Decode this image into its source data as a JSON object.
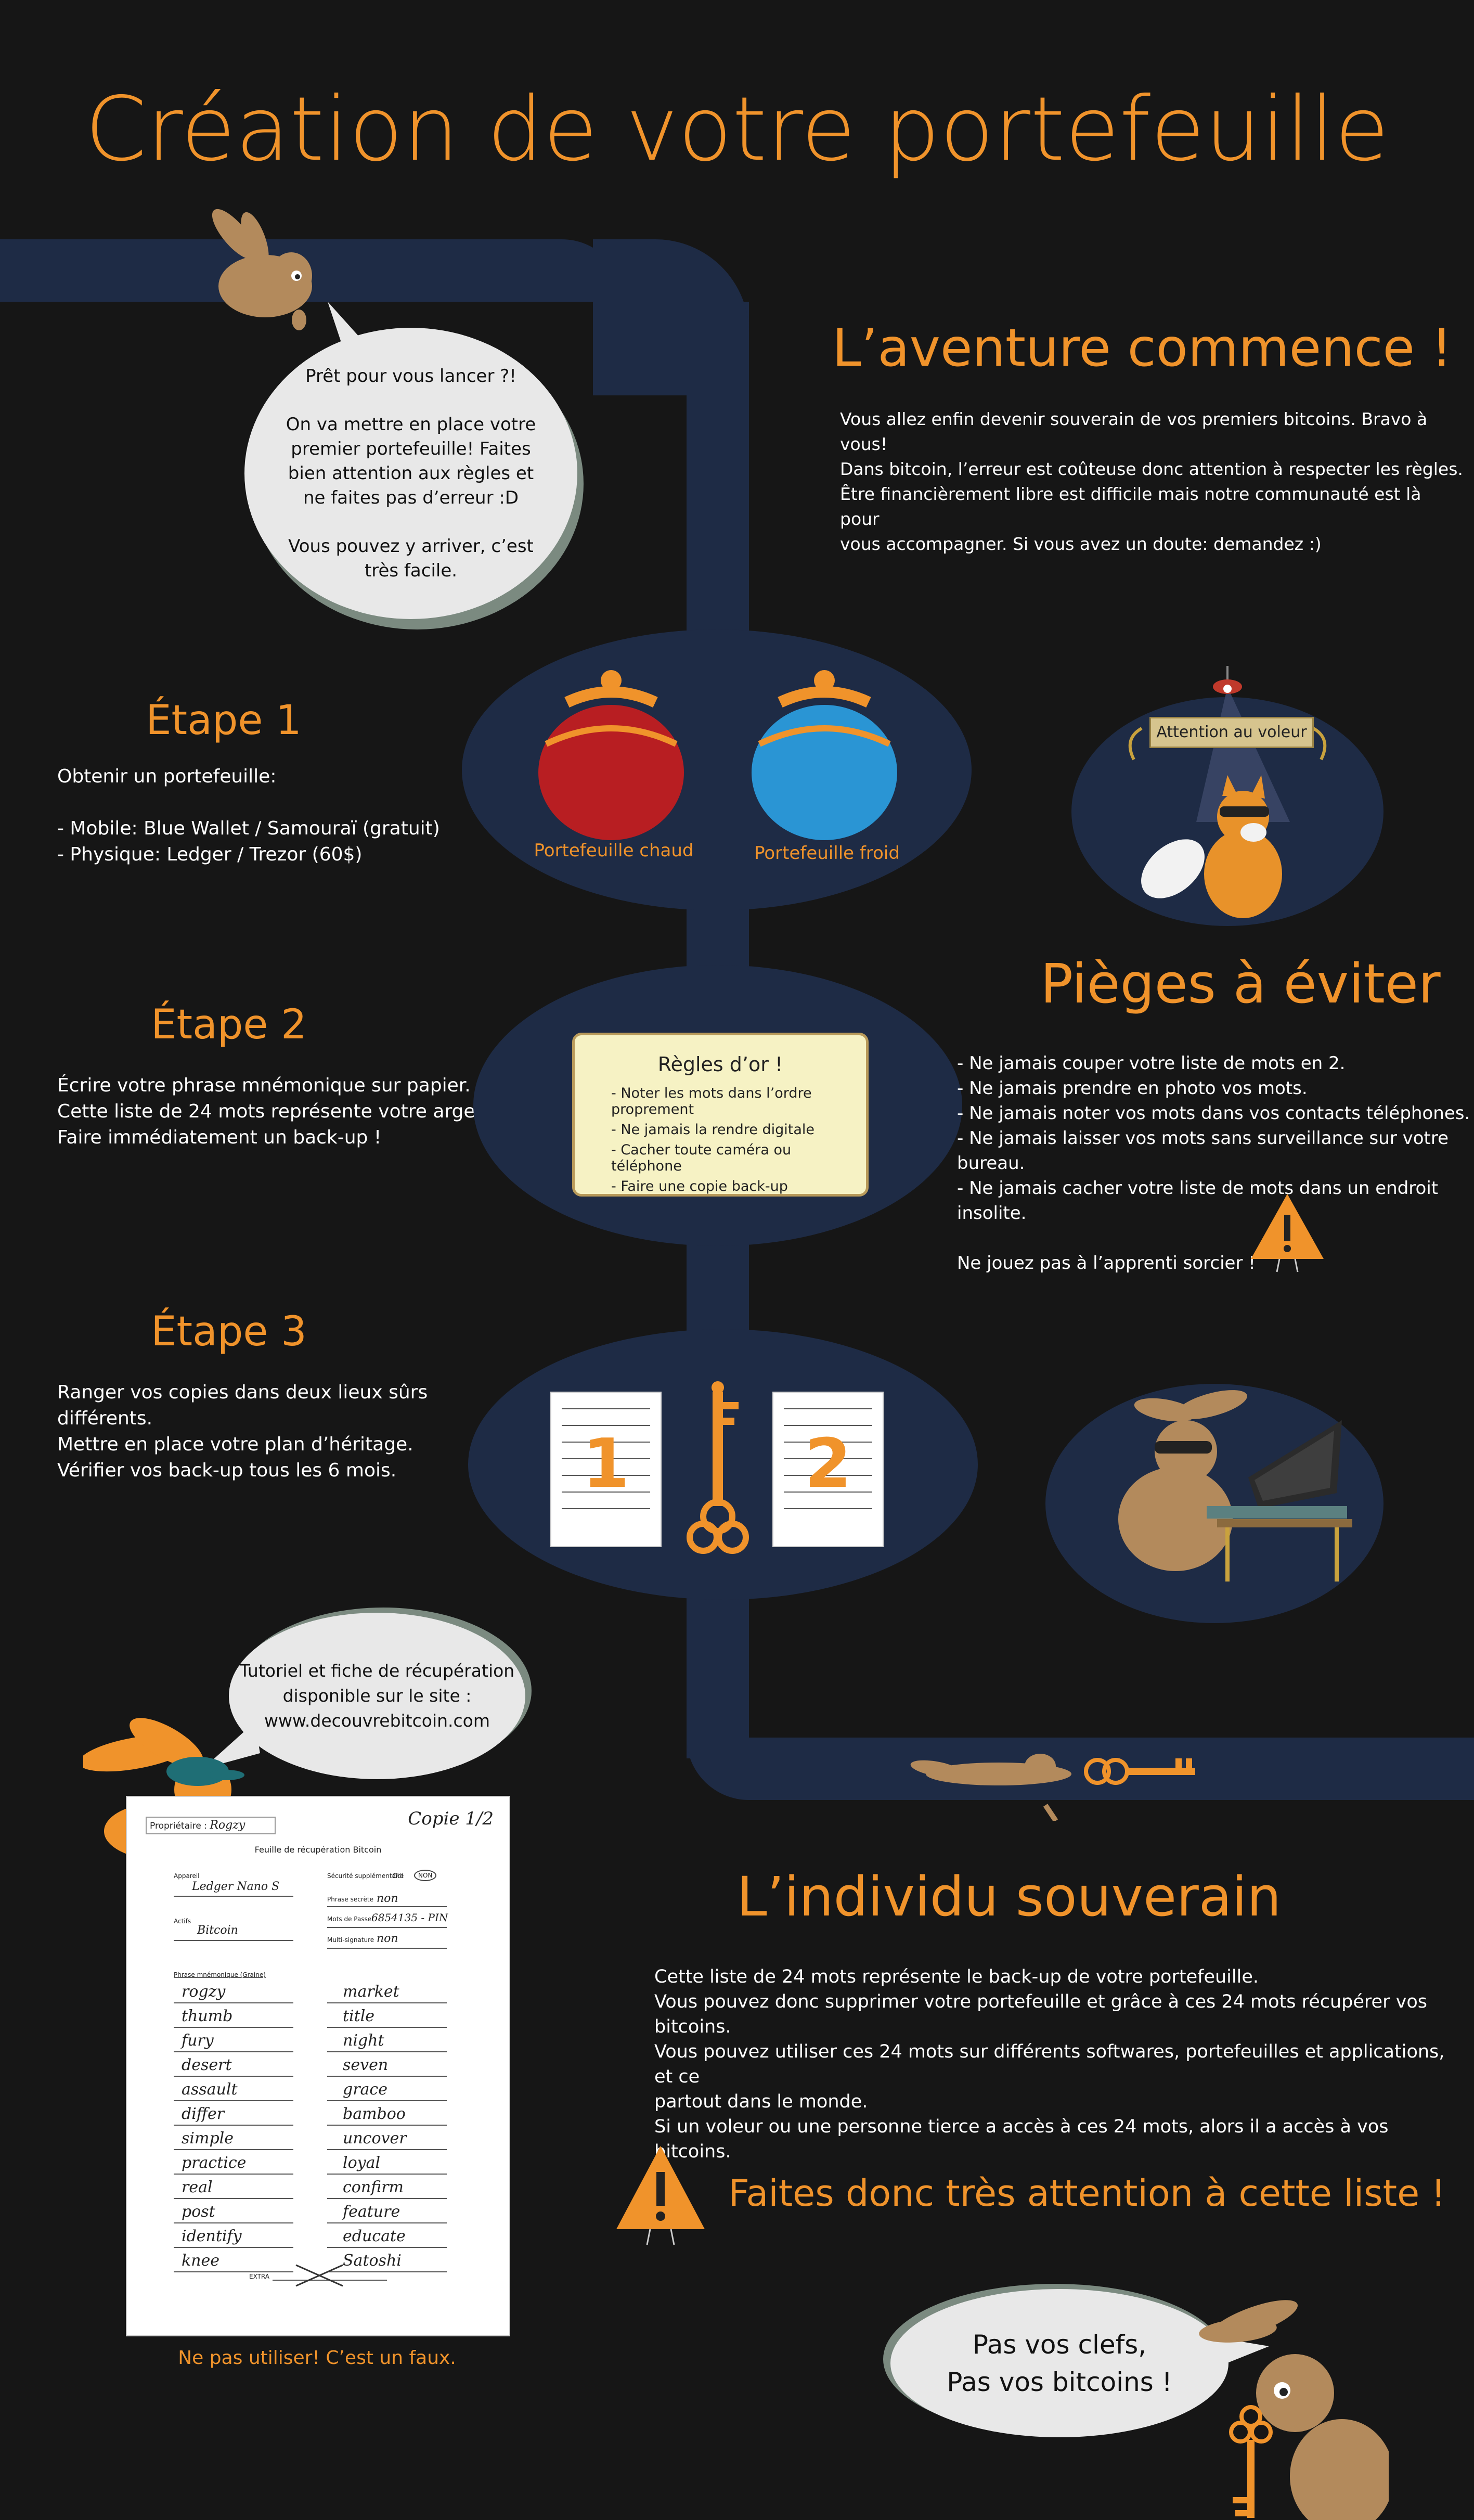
{
  "title": "Création de votre portefeuille",
  "colors": {
    "background": "#161616",
    "accent": "#f0932b",
    "path": "#1e2b45",
    "bubble": "#e8e8e8"
  },
  "intro_bubble": {
    "line1": "Prêt pour vous lancer ?!",
    "line2": "On va mettre en place votre premier portefeuille! Faites bien attention aux règles et ne faites pas d’erreur :D",
    "line3": "Vous pouvez y arriver, c’est très facile."
  },
  "adventure": {
    "heading": "L’aventure commence !",
    "p1": "Vous allez enfin devenir souverain de vos premiers bitcoins. Bravo à vous!\nDans bitcoin, l’erreur est coûteuse donc attention à respecter les règles.",
    "p2": "Être financièrement libre est difficile mais notre communauté est là pour\nvous accompagner. Si vous avez un doute: demandez :)"
  },
  "step1": {
    "title": "Étape 1",
    "text": "Obtenir un portefeuille:\n\n- Mobile: Blue Wallet / Samouraï (gratuit)\n- Physique: Ledger / Trezor (60$)",
    "hot_wallet": "Portefeuille chaud",
    "cold_wallet": "Portefeuille froid",
    "thief_sign": "Attention au voleur"
  },
  "step2": {
    "title": "Étape 2",
    "text": "Écrire votre phrase mnémonique sur papier.\nCette liste de 24 mots représente votre argent.\nFaire immédiatement un back-up !",
    "scroll_title": "Règles d’or !",
    "scroll_rules": [
      "- Noter les mots dans l’ordre proprement",
      "- Ne jamais la rendre digitale",
      "- Cacher toute caméra ou téléphone",
      "- Faire une copie back-up"
    ]
  },
  "traps": {
    "heading": "Pièges à éviter",
    "items": [
      "- Ne jamais couper votre liste de mots en 2.",
      "- Ne jamais prendre en photo vos mots.",
      "- Ne jamais noter vos mots dans vos contacts téléphones.",
      "- Ne jamais laisser vos mots sans surveillance sur votre bureau.",
      "- Ne jamais cacher votre liste de mots dans un endroit insolite."
    ],
    "footer": "Ne jouez pas à l’apprenti sorcier !"
  },
  "step3": {
    "title": "Étape 3",
    "text": "Ranger vos copies dans deux lieux sûrs différents.\nMettre en place votre plan d’héritage.\nVérifier vos back-up tous les 6 mois.",
    "copy1": "1",
    "copy2": "2"
  },
  "tutorial_bubble": "Tutoriel et fiche de récupération\ndisponible sur le site :\nwww.decouvrebitcoin.com",
  "recovery_sheet": {
    "copy_label": "Copie 1/2",
    "owner_label": "Propriétaire :",
    "owner_value": "Rogzy",
    "sheet_title": "Feuille de récupération Bitcoin",
    "device_label": "Appareil",
    "device_value": "Ledger Nano S",
    "asset_label": "Actifs",
    "asset_value": "Bitcoin",
    "security_label": "Sécurité supplémentaire",
    "yes": "OUI",
    "no": "NON",
    "passphrase_label": "Phrase secrète",
    "passphrase_value": "non",
    "pin_label": "Mots de Passe",
    "pin_value": "6854135 - PIN",
    "multisig_label": "Multi-signature",
    "multisig_value": "non",
    "mnemonic_label": "Phrase mnémonique (Graine)",
    "words_left": [
      "rogzy",
      "thumb",
      "fury",
      "desert",
      "assault",
      "differ",
      "simple",
      "practice",
      "real",
      "post",
      "identify",
      "knee"
    ],
    "words_right": [
      "market",
      "title",
      "night",
      "seven",
      "grace",
      "bamboo",
      "uncover",
      "loyal",
      "confirm",
      "feature",
      "educate",
      "Satoshi"
    ],
    "extra_label": "EXTRA",
    "caption": "Ne pas utiliser! C’est un faux."
  },
  "sovereign": {
    "heading": "L’individu souverain",
    "text": "Cette liste de 24 mots représente le back-up de votre portefeuille.\nVous pouvez donc supprimer votre portefeuille et grâce à ces 24 mots récupérer vos bitcoins.\nVous pouvez utiliser ces 24 mots sur différents softwares, portefeuilles et applications, et ce\npartout dans le monde.\nSi un voleur ou une personne tierce a accès à ces 24 mots, alors il a accès à vos bitcoins.",
    "warning": "Faites donc très attention à cette liste !"
  },
  "final_bubble": "Pas vos clefs,\nPas vos bitcoins !"
}
